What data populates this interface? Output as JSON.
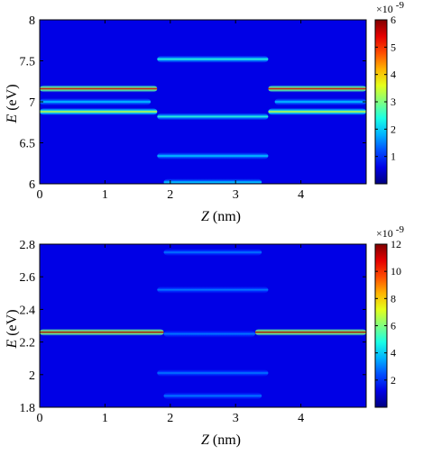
{
  "chart_data": [
    {
      "type": "heatmap",
      "xlabel_var": "Z",
      "xlabel_unit": "(nm)",
      "ylabel_var": "E",
      "ylabel_unit": "(eV)",
      "xlim": [
        0,
        5
      ],
      "ylim": [
        6,
        8
      ],
      "x_ticks": [
        0,
        1,
        2,
        3,
        4
      ],
      "y_ticks": [
        6,
        6.5,
        7,
        7.5,
        8
      ],
      "colorbar": {
        "colormap": "jet",
        "range": [
          0,
          6
        ],
        "ticks": [
          1,
          2,
          3,
          4,
          5,
          6
        ],
        "multiplier_base": "×10",
        "multiplier_exp": "-9"
      },
      "features": [
        {
          "E": 7.16,
          "z_start": 0.0,
          "z_end": 1.8,
          "intensity": 5.5
        },
        {
          "E": 7.16,
          "z_start": 3.5,
          "z_end": 5.0,
          "intensity": 5.5
        },
        {
          "E": 7.0,
          "z_start": 0.0,
          "z_end": 1.7,
          "intensity": 2.0
        },
        {
          "E": 7.0,
          "z_start": 3.6,
          "z_end": 5.0,
          "intensity": 2.0
        },
        {
          "E": 6.88,
          "z_start": 0.0,
          "z_end": 1.8,
          "intensity": 3.5
        },
        {
          "E": 6.88,
          "z_start": 3.5,
          "z_end": 5.0,
          "intensity": 3.5
        },
        {
          "E": 6.82,
          "z_start": 1.8,
          "z_end": 3.5,
          "intensity": 2.5
        },
        {
          "E": 7.52,
          "z_start": 1.8,
          "z_end": 3.5,
          "intensity": 2.5
        },
        {
          "E": 6.34,
          "z_start": 1.8,
          "z_end": 3.5,
          "intensity": 2.0
        },
        {
          "E": 6.02,
          "z_start": 1.9,
          "z_end": 3.4,
          "intensity": 2.0
        }
      ]
    },
    {
      "type": "heatmap",
      "xlabel_var": "Z",
      "xlabel_unit": "(nm)",
      "ylabel_var": "E",
      "ylabel_unit": "(eV)",
      "xlim": [
        0,
        5
      ],
      "ylim": [
        1.8,
        2.8
      ],
      "x_ticks": [
        0,
        1,
        2,
        3,
        4
      ],
      "y_ticks": [
        1.8,
        2,
        2.2,
        2.4,
        2.6,
        2.8
      ],
      "colorbar": {
        "colormap": "jet",
        "range": [
          0,
          12
        ],
        "ticks": [
          2,
          4,
          6,
          8,
          10,
          12
        ],
        "multiplier_base": "×10",
        "multiplier_exp": "-9"
      },
      "features": [
        {
          "E": 2.26,
          "z_start": 0.0,
          "z_end": 1.9,
          "intensity": 11.5
        },
        {
          "E": 2.26,
          "z_start": 3.3,
          "z_end": 5.0,
          "intensity": 11.5
        },
        {
          "E": 2.75,
          "z_start": 1.9,
          "z_end": 3.4,
          "intensity": 3.0
        },
        {
          "E": 2.52,
          "z_start": 1.8,
          "z_end": 3.5,
          "intensity": 3.0
        },
        {
          "E": 2.25,
          "z_start": 1.9,
          "z_end": 3.3,
          "intensity": 3.0
        },
        {
          "E": 2.01,
          "z_start": 1.8,
          "z_end": 3.5,
          "intensity": 3.0
        },
        {
          "E": 1.87,
          "z_start": 1.9,
          "z_end": 3.4,
          "intensity": 3.0
        }
      ]
    }
  ]
}
